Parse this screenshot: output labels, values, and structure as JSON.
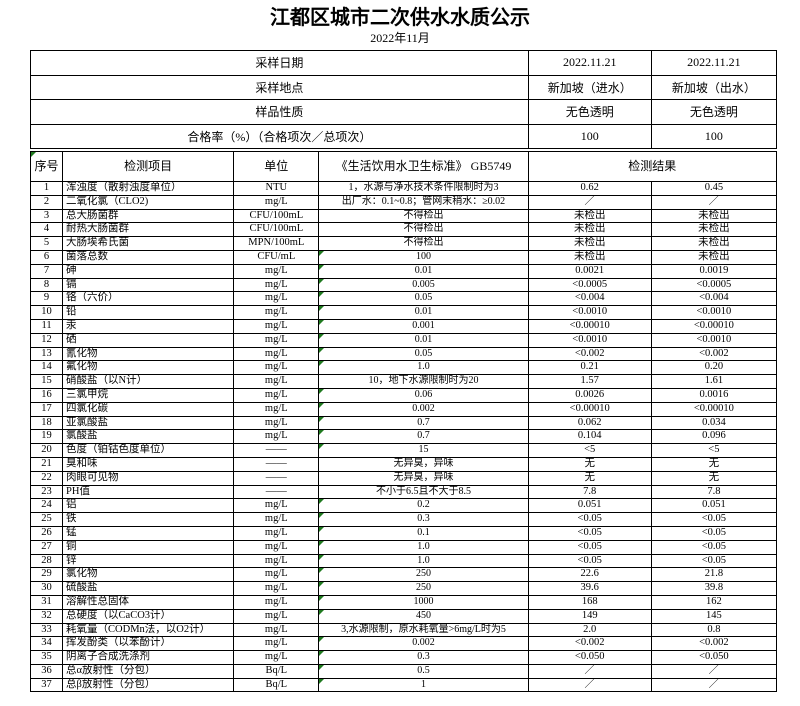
{
  "page": {
    "title": "江都区城市二次供水水质公示",
    "subtitle": "2022年11月"
  },
  "colors": {
    "flag_triangle": "#1f7a1f",
    "border": "#000000"
  },
  "info": {
    "rows": [
      {
        "label": "采样日期",
        "v1": "2022.11.21",
        "v2": "2022.11.21"
      },
      {
        "label": "采样地点",
        "v1": "新加坡（进水）",
        "v2": "新加坡（出水）"
      },
      {
        "label": "样品性质",
        "v1": "无色透明",
        "v2": "无色透明"
      },
      {
        "label": "合格率（%）（合格项次／总项次）",
        "v1": "100",
        "v2": "100"
      }
    ]
  },
  "table": {
    "headers": {
      "no": "序号",
      "item": "检测项目",
      "unit": "单位",
      "standard": "《生活饮用水卫生标准》 GB5749",
      "result": "检测结果"
    },
    "rows": [
      {
        "no": "1",
        "item": "浑浊度（散射浊度单位）",
        "unit": "NTU",
        "standard": "1，水源与净水技术条件限制时为3",
        "r1": "0.62",
        "r2": "0.45",
        "flag": false
      },
      {
        "no": "2",
        "item": "二氧化氯（CLO2)",
        "unit": "mg/L",
        "standard": "出厂水：0.1~0.8；管网末稍水：≥0.02",
        "r1": "／",
        "r2": "／",
        "flag": false
      },
      {
        "no": "3",
        "item": "总大肠菌群",
        "unit": "CFU/100mL",
        "standard": "不得检出",
        "r1": "未检出",
        "r2": "未检出",
        "flag": false
      },
      {
        "no": "4",
        "item": "耐热大肠菌群",
        "unit": "CFU/100mL",
        "standard": "不得检出",
        "r1": "未检出",
        "r2": "未检出",
        "flag": false
      },
      {
        "no": "5",
        "item": "大肠埃希氏菌",
        "unit": "MPN/100mL",
        "standard": "不得检出",
        "r1": "未检出",
        "r2": "未检出",
        "flag": false
      },
      {
        "no": "6",
        "item": "菌落总数",
        "unit": "CFU/mL",
        "standard": "100",
        "r1": "未检出",
        "r2": "未检出",
        "flag": true
      },
      {
        "no": "7",
        "item": "砷",
        "unit": "mg/L",
        "standard": "0.01",
        "r1": "0.0021",
        "r2": "0.0019",
        "flag": true
      },
      {
        "no": "8",
        "item": "镉",
        "unit": "mg/L",
        "standard": "0.005",
        "r1": "<0.0005",
        "r2": "<0.0005",
        "flag": true
      },
      {
        "no": "9",
        "item": "铬（六价）",
        "unit": "mg/L",
        "standard": "0.05",
        "r1": "<0.004",
        "r2": "<0.004",
        "flag": true
      },
      {
        "no": "10",
        "item": "铅",
        "unit": "mg/L",
        "standard": "0.01",
        "r1": "<0.0010",
        "r2": "<0.0010",
        "flag": true
      },
      {
        "no": "11",
        "item": "汞",
        "unit": "mg/L",
        "standard": "0.001",
        "r1": "<0.00010",
        "r2": "<0.00010",
        "flag": true
      },
      {
        "no": "12",
        "item": "硒",
        "unit": "mg/L",
        "standard": "0.01",
        "r1": "<0.0010",
        "r2": "<0.0010",
        "flag": true
      },
      {
        "no": "13",
        "item": "氰化物",
        "unit": "mg/L",
        "standard": "0.05",
        "r1": "<0.002",
        "r2": "<0.002",
        "flag": true
      },
      {
        "no": "14",
        "item": "氟化物",
        "unit": "mg/L",
        "standard": "1.0",
        "r1": "0.21",
        "r2": "0.20",
        "flag": true
      },
      {
        "no": "15",
        "item": "硝酸盐（以N计）",
        "unit": "mg/L",
        "standard": "10，地下水源限制时为20",
        "r1": "1.57",
        "r2": "1.61",
        "flag": false
      },
      {
        "no": "16",
        "item": "三氯甲烷",
        "unit": "mg/L",
        "standard": "0.06",
        "r1": "0.0026",
        "r2": "0.0016",
        "flag": true
      },
      {
        "no": "17",
        "item": "四氯化碳",
        "unit": "mg/L",
        "standard": "0.002",
        "r1": "<0.00010",
        "r2": "<0.00010",
        "flag": true
      },
      {
        "no": "18",
        "item": "亚氯酸盐",
        "unit": "mg/L",
        "standard": "0.7",
        "r1": "0.062",
        "r2": "0.034",
        "flag": true
      },
      {
        "no": "19",
        "item": "氯酸盐",
        "unit": "mg/L",
        "standard": "0.7",
        "r1": "0.104",
        "r2": "0.096",
        "flag": true
      },
      {
        "no": "20",
        "item": "色度（铂钴色度单位）",
        "unit": "——",
        "standard": "15",
        "r1": "<5",
        "r2": "<5",
        "flag": true
      },
      {
        "no": "21",
        "item": "臭和味",
        "unit": "——",
        "standard": "无异臭，异味",
        "r1": "无",
        "r2": "无",
        "flag": false
      },
      {
        "no": "22",
        "item": "肉眼可见物",
        "unit": "——",
        "standard": "无异臭，异味",
        "r1": "无",
        "r2": "无",
        "flag": false
      },
      {
        "no": "23",
        "item": "PH值",
        "unit": "——",
        "standard": "不小于6.5且不大于8.5",
        "r1": "7.8",
        "r2": "7.8",
        "flag": false
      },
      {
        "no": "24",
        "item": "铝",
        "unit": "mg/L",
        "standard": "0.2",
        "r1": "0.051",
        "r2": "0.051",
        "flag": true
      },
      {
        "no": "25",
        "item": "铁",
        "unit": "mg/L",
        "standard": "0.3",
        "r1": "<0.05",
        "r2": "<0.05",
        "flag": true
      },
      {
        "no": "26",
        "item": "锰",
        "unit": "mg/L",
        "standard": "0.1",
        "r1": "<0.05",
        "r2": "<0.05",
        "flag": true
      },
      {
        "no": "27",
        "item": "铜",
        "unit": "mg/L",
        "standard": "1.0",
        "r1": "<0.05",
        "r2": "<0.05",
        "flag": true
      },
      {
        "no": "28",
        "item": "锌",
        "unit": "mg/L",
        "standard": "1.0",
        "r1": "<0.05",
        "r2": "<0.05",
        "flag": true
      },
      {
        "no": "29",
        "item": "氯化物",
        "unit": "mg/L",
        "standard": "250",
        "r1": "22.6",
        "r2": "21.8",
        "flag": true
      },
      {
        "no": "30",
        "item": "硫酸盐",
        "unit": "mg/L",
        "standard": "250",
        "r1": "39.6",
        "r2": "39.8",
        "flag": true
      },
      {
        "no": "31",
        "item": "溶解性总固体",
        "unit": "mg/L",
        "standard": "1000",
        "r1": "168",
        "r2": "162",
        "flag": true
      },
      {
        "no": "32",
        "item": "总硬度（以CaCO3计）",
        "unit": "mg/L",
        "standard": "450",
        "r1": "149",
        "r2": "145",
        "flag": true
      },
      {
        "no": "33",
        "item": "耗氧量（CODMn法，以O2计）",
        "unit": "mg/L",
        "standard": "3,水源限制，原水耗氧量>6mg/L时为5",
        "r1": "2.0",
        "r2": "0.8",
        "flag": false
      },
      {
        "no": "34",
        "item": "挥发酚类（以苯酚计）",
        "unit": "mg/L",
        "standard": "0.002",
        "r1": "<0.002",
        "r2": "<0.002",
        "flag": true
      },
      {
        "no": "35",
        "item": "阴离子合成洗涤剂",
        "unit": "mg/L",
        "standard": "0.3",
        "r1": "<0.050",
        "r2": "<0.050",
        "flag": true
      },
      {
        "no": "36",
        "item": "总α放射性（分包）",
        "unit": "Bq/L",
        "standard": "0.5",
        "r1": "／",
        "r2": "／",
        "flag": true
      },
      {
        "no": "37",
        "item": "总β放射性（分包）",
        "unit": "Bq/L",
        "standard": "1",
        "r1": "／",
        "r2": "／",
        "flag": true
      }
    ]
  }
}
